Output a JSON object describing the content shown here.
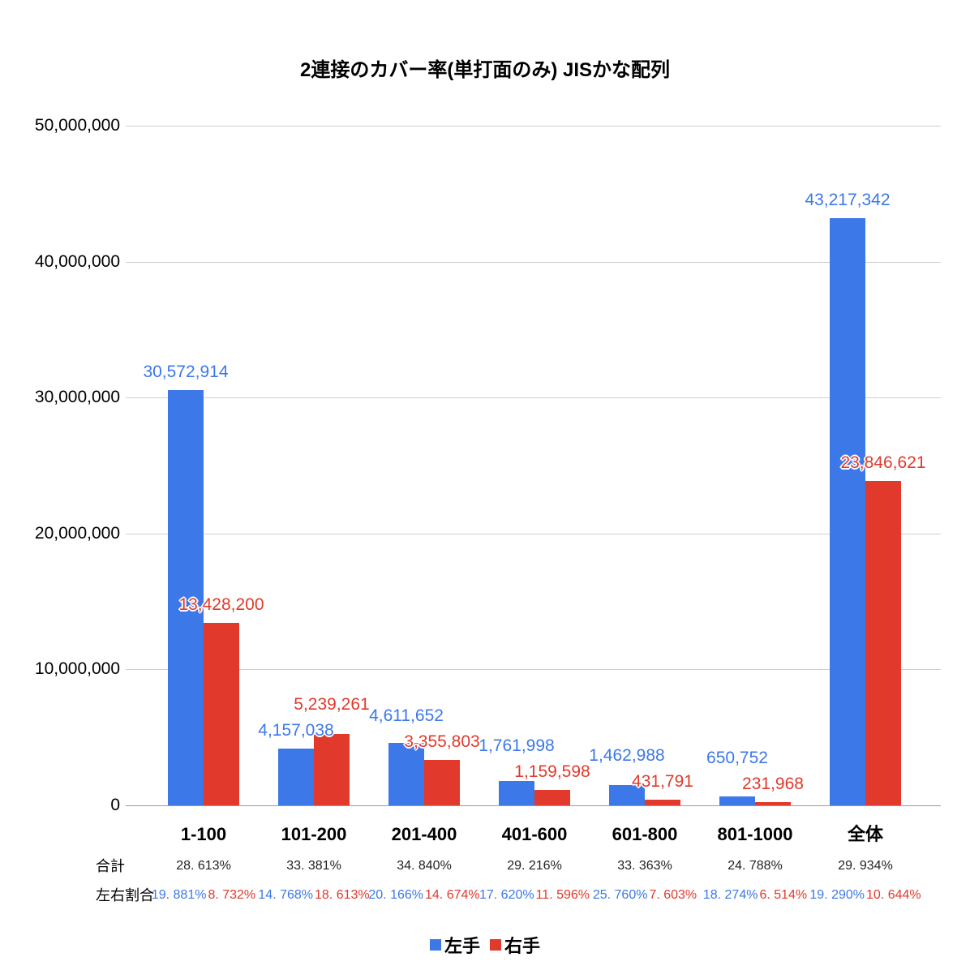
{
  "legend": {
    "left": "左手",
    "right": "右手"
  },
  "rows": {
    "total_label": "合計",
    "ratio_label": "左右割合"
  },
  "chart_data": {
    "type": "bar",
    "title": "2連接のカバー率(単打面のみ) JISかな配列",
    "categories": [
      "1-100",
      "101-200",
      "201-400",
      "401-600",
      "601-800",
      "801-1000",
      "全体"
    ],
    "series": [
      {
        "name": "左手",
        "color": "#3c78e8",
        "values": [
          30572914,
          4157038,
          4611652,
          1761998,
          1462988,
          650752,
          43217342
        ]
      },
      {
        "name": "右手",
        "color": "#e1392b",
        "values": [
          13428200,
          5239261,
          3355803,
          1159598,
          431791,
          231968,
          23846621
        ]
      }
    ],
    "total_pct": [
      "28. 613%",
      "33. 381%",
      "34. 840%",
      "29. 216%",
      "33. 363%",
      "24. 788%",
      "29. 934%"
    ],
    "ratio_left": [
      "19. 881%",
      "14. 768%",
      "20. 166%",
      "17. 620%",
      "25. 760%",
      "18. 274%",
      "19. 290%"
    ],
    "ratio_right": [
      "8. 732%",
      "18. 613%",
      "14. 674%",
      "11. 596%",
      "7. 603%",
      "6. 514%",
      "10. 644%"
    ],
    "y_ticks": [
      "0",
      "10,000,000",
      "20,000,000",
      "30,000,000",
      "40,000,000",
      "50,000,000"
    ],
    "y_tick_step": 10000000,
    "ylim": [
      0,
      50000000
    ],
    "xlabel": "",
    "ylabel": "",
    "grid": true,
    "legend_position": "bottom"
  }
}
